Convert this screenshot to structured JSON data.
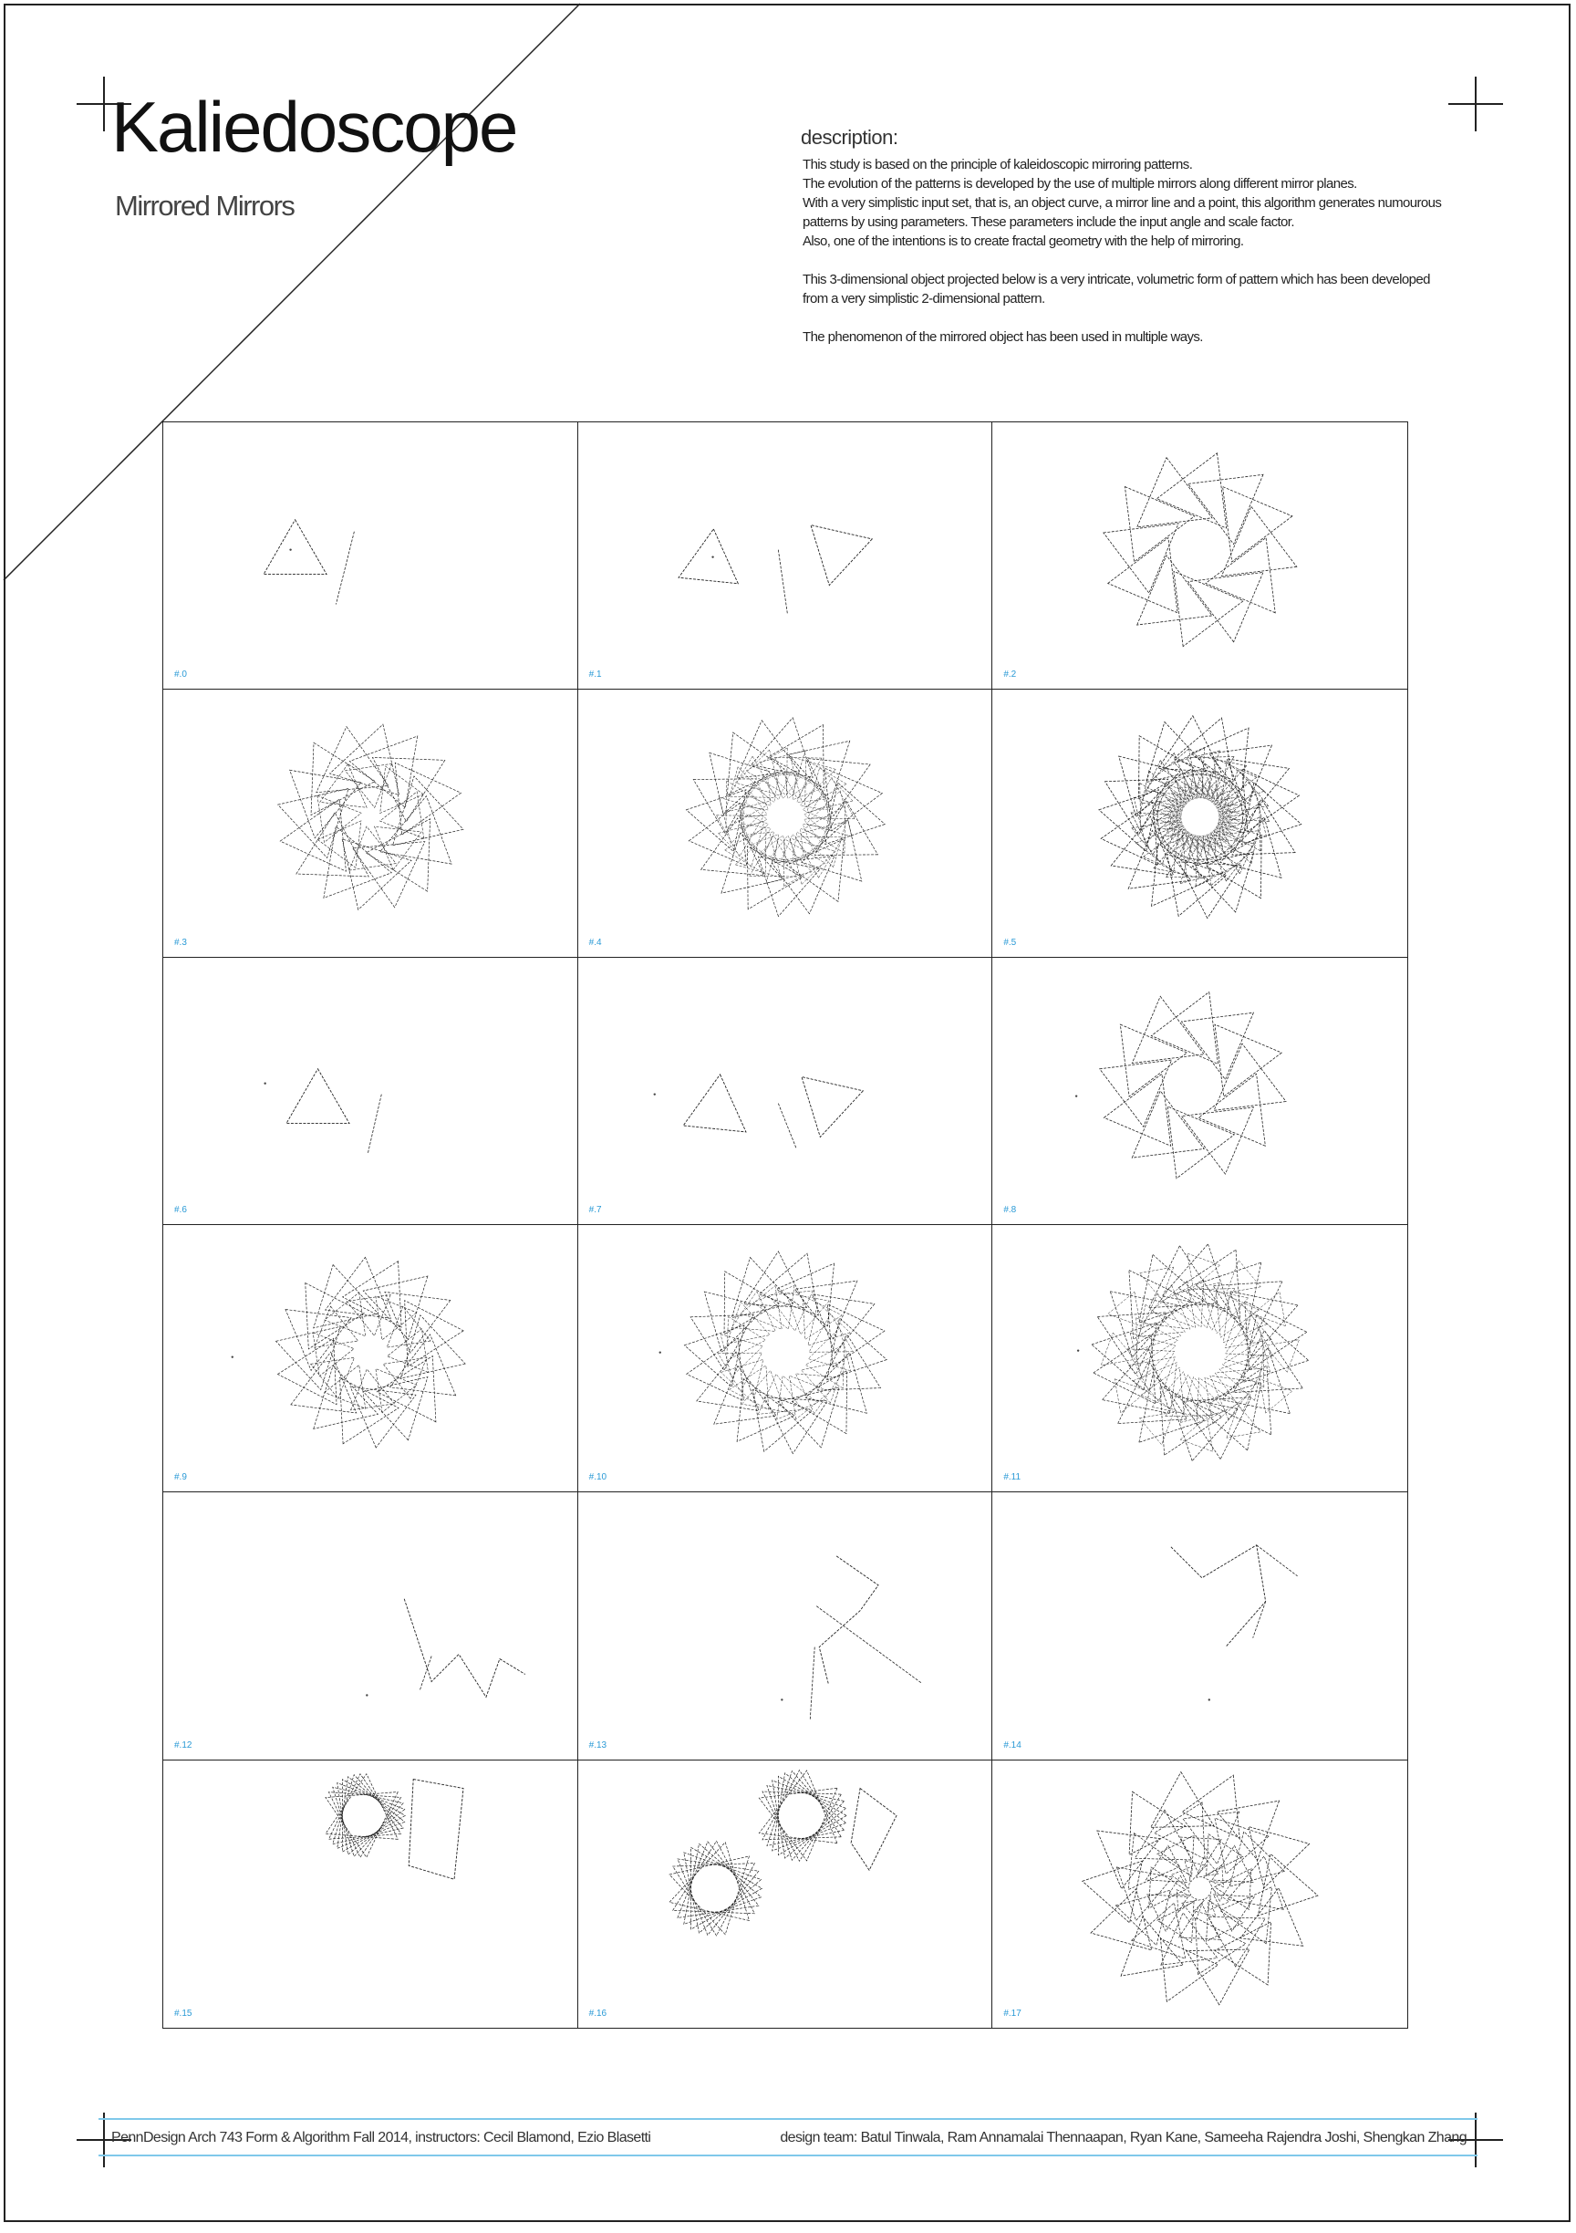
{
  "header": {
    "title": "Kaliedoscope",
    "subtitle": "Mirrored Mirrors"
  },
  "description": {
    "heading": "description:",
    "lines": [
      "This study is based on the principle of kaleidoscopic mirroring patterns.",
      "The evolution of the patterns is developed by the use of multiple mirrors along different mirror planes.",
      "With a very simplistic input set, that is, an object curve, a mirror line and a point, this algorithm generates numourous",
      "patterns by using parameters. These parameters include the input angle and scale factor.",
      "Also, one of the intentions is to create fractal geometry with the help of mirroring.",
      "",
      "This 3-dimensional object projected below is a very intricate, volumetric form of pattern which has been developed",
      "from a very simplistic 2-dimensional pattern.",
      "",
      "The phenomenon of the mirrored object has been used in multiple ways."
    ]
  },
  "gallery": {
    "labels": [
      "#.0",
      "#.1",
      "#.2",
      "#.3",
      "#.4",
      "#.5",
      "#.6",
      "#.7",
      "#.8",
      "#.9",
      "#.10",
      "#.11",
      "#.12",
      "#.13",
      "#.14",
      "#.15",
      "#.16",
      "#.17"
    ]
  },
  "footer": {
    "left": "PennDesign Arch 743 Form & Algorithm Fall 2014, instructors: Cecil Blamond, Ezio Blasetti",
    "right": "design team: Batul Tinwala, Ram Annamalai Thennaapan, Ryan Kane, Sameeha Rajendra Joshi, Shengkan Zhang"
  },
  "colors": {
    "label": "#2a9ad6",
    "footer_rule": "#7fc8ea",
    "line": "#222222"
  }
}
